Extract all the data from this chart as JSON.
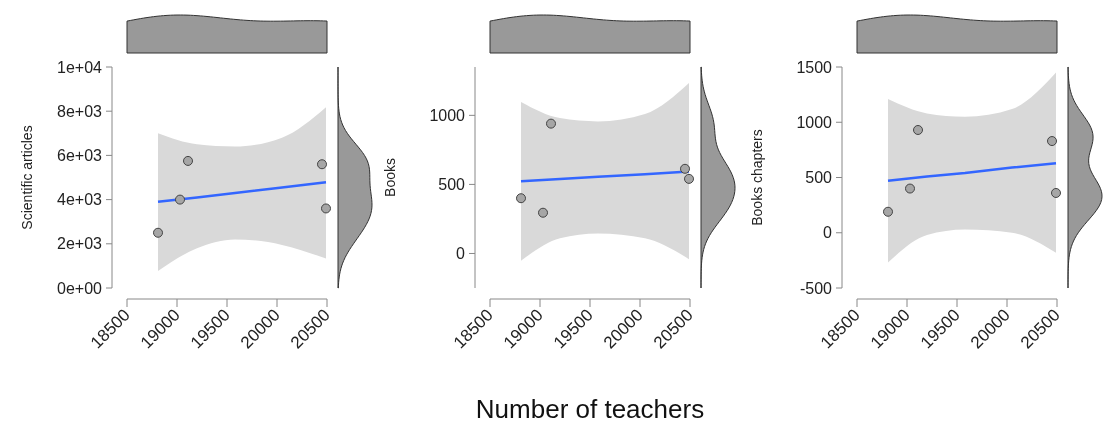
{
  "chart_data": [
    {
      "type": "scatter",
      "ylabel": "Scientific articles",
      "xlim": [
        18500,
        20500
      ],
      "xticks": [
        18500,
        19000,
        19500,
        20000,
        20500
      ],
      "ylim": [
        0,
        10000
      ],
      "yticks": [
        {
          "value": 0,
          "label": "0e+00"
        },
        {
          "value": 2000,
          "label": "2e+03"
        },
        {
          "value": 4000,
          "label": "4e+03"
        },
        {
          "value": 6000,
          "label": "6e+03"
        },
        {
          "value": 8000,
          "label": "8e+03"
        },
        {
          "value": 10000,
          "label": "1e+04"
        }
      ],
      "grid": false,
      "series": [
        {
          "type": "line",
          "color": "#3366ff",
          "marker": "none",
          "x": [
            18810,
            19200,
            19580,
            20050,
            20490
          ],
          "values": [
            3900,
            4100,
            4300,
            4550,
            4780
          ],
          "lower": [
            770,
            1800,
            2200,
            1950,
            1330
          ],
          "upper": [
            7000,
            6500,
            6400,
            6800,
            8180
          ]
        },
        {
          "color": "#a6a6a6",
          "marker": "circle",
          "x": [
            18810,
            19030,
            19110,
            20450,
            20490
          ],
          "values": [
            2500,
            4000,
            5750,
            5600,
            3600
          ]
        }
      ]
    },
    {
      "type": "scatter",
      "ylabel": "Books",
      "xlabel": "Number of teachers",
      "xlim": [
        18500,
        20500
      ],
      "xticks": [
        18500,
        19000,
        19500,
        20000,
        20500
      ],
      "ylim": [
        -250,
        1350
      ],
      "yticks": [
        0,
        500,
        1000
      ],
      "grid": false,
      "series": [
        {
          "type": "line",
          "color": "#3366ff",
          "marker": "none",
          "x": [
            18810,
            19200,
            19580,
            20050,
            20490
          ],
          "values": [
            523,
            539,
            555,
            574,
            593
          ],
          "lower": [
            -53,
            110,
            145,
            110,
            -41
          ],
          "upper": [
            1097,
            980,
            956,
            1010,
            1235
          ]
        },
        {
          "color": "#a6a6a6",
          "marker": "circle",
          "x": [
            18810,
            19030,
            19110,
            20450,
            20490
          ],
          "values": [
            400,
            295,
            940,
            613,
            540
          ]
        }
      ]
    },
    {
      "type": "scatter",
      "ylabel": "Books  chapters",
      "xlim": [
        18500,
        20500
      ],
      "xticks": [
        18500,
        19000,
        19500,
        20000,
        20500
      ],
      "ylim": [
        -500,
        1500
      ],
      "yticks": [
        -500,
        0,
        500,
        1000,
        1500
      ],
      "grid": false,
      "series": [
        {
          "type": "line",
          "color": "#3366ff",
          "marker": "none",
          "x": [
            18810,
            19200,
            19580,
            20050,
            20490
          ],
          "values": [
            470,
            510,
            540,
            590,
            630
          ],
          "lower": [
            -270,
            -20,
            30,
            0,
            -180
          ],
          "upper": [
            1210,
            1080,
            1050,
            1120,
            1450
          ]
        },
        {
          "color": "#a6a6a6",
          "marker": "circle",
          "x": [
            18810,
            19030,
            19110,
            20450,
            20490
          ],
          "values": [
            190,
            400,
            930,
            830,
            360
          ]
        }
      ]
    }
  ]
}
